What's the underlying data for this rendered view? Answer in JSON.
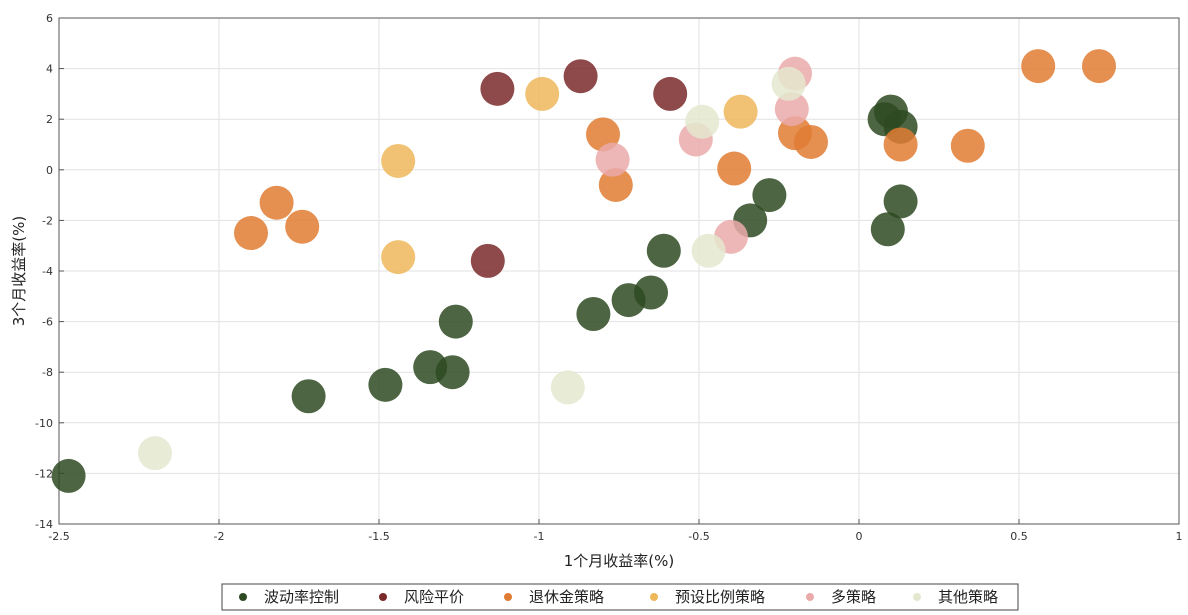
{
  "chart_data": {
    "type": "scatter",
    "xlabel": "1个月收益率(%)",
    "ylabel": "3个月收益率(%)",
    "xlim": [
      -2.5,
      1
    ],
    "ylim": [
      -14,
      6
    ],
    "xticks": [
      -2.5,
      -2,
      -1.5,
      -1,
      -0.5,
      0,
      0.5,
      1
    ],
    "yticks": [
      -14,
      -12,
      -10,
      -8,
      -6,
      -4,
      -2,
      0,
      2,
      4,
      6
    ],
    "grid": true,
    "legend_position": "bottom",
    "series": [
      {
        "name": "波动率控制",
        "color": "#2e4a22",
        "points": [
          [
            -2.47,
            -12.1
          ],
          [
            -1.72,
            -8.95
          ],
          [
            -1.48,
            -8.5
          ],
          [
            -1.34,
            -7.8
          ],
          [
            -1.27,
            -8.0
          ],
          [
            -1.26,
            -6.0
          ],
          [
            -0.83,
            -5.7
          ],
          [
            -0.72,
            -5.15
          ],
          [
            -0.65,
            -4.85
          ],
          [
            -0.61,
            -3.2
          ],
          [
            -0.34,
            -2.0
          ],
          [
            -0.28,
            -1.0
          ],
          [
            0.09,
            -2.35
          ],
          [
            0.13,
            -1.25
          ],
          [
            0.08,
            2.0
          ],
          [
            0.1,
            2.3
          ],
          [
            0.13,
            1.7
          ]
        ]
      },
      {
        "name": "风险平价",
        "color": "#7a2a2a",
        "points": [
          [
            -1.13,
            3.2
          ],
          [
            -0.87,
            3.7
          ],
          [
            -0.59,
            3.0
          ],
          [
            -1.16,
            -3.6
          ]
        ]
      },
      {
        "name": "退休金策略",
        "color": "#e07b33",
        "points": [
          [
            -1.9,
            -2.5
          ],
          [
            -1.82,
            -1.3
          ],
          [
            -1.74,
            -2.25
          ],
          [
            -0.8,
            1.4
          ],
          [
            -0.76,
            -0.6
          ],
          [
            -0.39,
            0.05
          ],
          [
            -0.2,
            1.45
          ],
          [
            -0.15,
            1.1
          ],
          [
            0.13,
            1.0
          ],
          [
            0.34,
            0.95
          ],
          [
            0.56,
            4.1
          ],
          [
            0.75,
            4.1
          ]
        ]
      },
      {
        "name": "预设比例策略",
        "color": "#eeb75a",
        "points": [
          [
            -0.99,
            3.0
          ],
          [
            -1.44,
            0.35
          ],
          [
            -1.44,
            -3.45
          ],
          [
            -0.37,
            2.3
          ]
        ]
      },
      {
        "name": "多策略",
        "color": "#ebaaaa",
        "points": [
          [
            -0.2,
            3.8
          ],
          [
            -0.21,
            2.4
          ],
          [
            -0.51,
            1.2
          ],
          [
            -0.77,
            0.4
          ],
          [
            -0.4,
            -2.65
          ]
        ]
      },
      {
        "name": "其他策略",
        "color": "#e4e8cf",
        "points": [
          [
            -2.2,
            -11.2
          ],
          [
            -0.91,
            -8.6
          ],
          [
            -0.47,
            -3.2
          ],
          [
            -0.49,
            1.9
          ],
          [
            -0.22,
            3.4
          ]
        ]
      }
    ]
  }
}
